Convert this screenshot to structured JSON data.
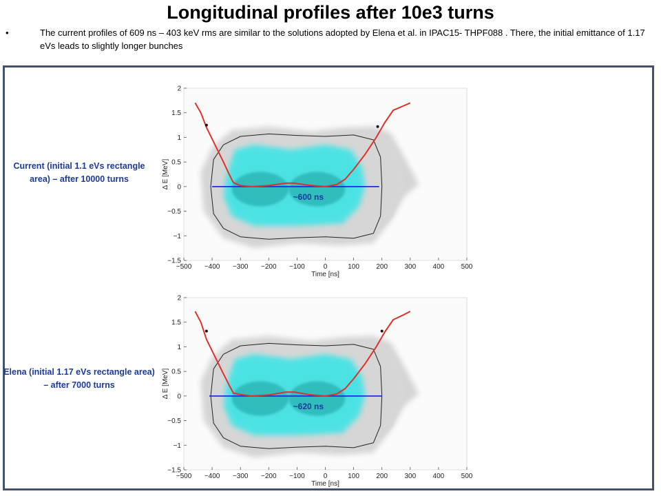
{
  "slide": {
    "title": "Longitudinal profiles after 10e3 turns",
    "bullet_symbol": "•",
    "bullet_text": "The current profiles of 609 ns – 403 keV rms are similar to the solutions adopted by Elena et al. in IPAC15- THPF088 . There, the initial emittance of 1.17 eVs leads to slightly longer bunches"
  },
  "colors": {
    "frame": "#42526e",
    "label_text": "#1b3a9e",
    "separatrix": "#222222",
    "profile": "#e0302a",
    "span_line": "#1a2fd6",
    "beam": "#29e6e8",
    "beam_core": "#1a9f9f",
    "background_cloud": "#c8c8c8"
  },
  "chart_data": [
    {
      "type": "scatter",
      "side_label": "Current (initial 1.1 eVs rectangle area) – after 10000 turns",
      "xlabel": "Time [ns]",
      "ylabel": "Δ E [MeV]",
      "xlim": [
        -500,
        500
      ],
      "ylim": [
        -1.5,
        2
      ],
      "xticks": [
        "−500",
        "−400",
        "−300",
        "−200",
        "−100",
        "0",
        "100",
        "200",
        "300",
        "400",
        "500"
      ],
      "yticks": [
        "−1.5",
        "−1",
        "−0.5",
        "0",
        "0.5",
        "1",
        "1.5",
        "2"
      ],
      "annotation": "~600 ns",
      "span": [
        -400,
        190
      ],
      "profile_points": [
        [
          -460,
          1.7
        ],
        [
          -440,
          1.5
        ],
        [
          -420,
          1.2
        ],
        [
          -390,
          0.85
        ],
        [
          -360,
          0.5
        ],
        [
          -340,
          0.25
        ],
        [
          -325,
          0.08
        ],
        [
          -300,
          0.02
        ],
        [
          -260,
          0.0
        ],
        [
          -200,
          0.02
        ],
        [
          -140,
          0.07
        ],
        [
          -110,
          0.07
        ],
        [
          -60,
          0.03
        ],
        [
          0,
          0.0
        ],
        [
          40,
          0.04
        ],
        [
          70,
          0.15
        ],
        [
          100,
          0.35
        ],
        [
          140,
          0.65
        ],
        [
          180,
          1.0
        ],
        [
          210,
          1.3
        ],
        [
          240,
          1.55
        ],
        [
          280,
          1.65
        ],
        [
          300,
          1.7
        ]
      ],
      "markers": [
        [
          -420,
          1.25
        ],
        [
          185,
          1.22
        ]
      ]
    },
    {
      "type": "scatter",
      "side_label": "Elena (initial 1.17 eVs rectangle area) – after 7000 turns",
      "xlabel": "Time [ns]",
      "ylabel": "Δ E [MeV]",
      "xlim": [
        -500,
        500
      ],
      "ylim": [
        -1.5,
        2
      ],
      "xticks": [
        "−500",
        "−400",
        "−300",
        "−200",
        "−100",
        "0",
        "100",
        "200",
        "300",
        "400",
        "500"
      ],
      "yticks": [
        "−1.5",
        "−1",
        "−0.5",
        "0",
        "0.5",
        "1",
        "1.5",
        "2"
      ],
      "annotation": "~620 ns",
      "span": [
        -410,
        200
      ],
      "profile_points": [
        [
          -460,
          1.72
        ],
        [
          -440,
          1.5
        ],
        [
          -420,
          1.15
        ],
        [
          -390,
          0.8
        ],
        [
          -360,
          0.45
        ],
        [
          -340,
          0.22
        ],
        [
          -325,
          0.06
        ],
        [
          -300,
          0.03
        ],
        [
          -260,
          0.0
        ],
        [
          -200,
          0.02
        ],
        [
          -140,
          0.08
        ],
        [
          -110,
          0.08
        ],
        [
          -60,
          0.03
        ],
        [
          0,
          0.0
        ],
        [
          40,
          0.04
        ],
        [
          70,
          0.15
        ],
        [
          100,
          0.35
        ],
        [
          140,
          0.65
        ],
        [
          180,
          1.0
        ],
        [
          210,
          1.3
        ],
        [
          240,
          1.55
        ],
        [
          280,
          1.66
        ],
        [
          300,
          1.72
        ]
      ],
      "markers": [
        [
          -420,
          1.32
        ],
        [
          200,
          1.32
        ]
      ]
    }
  ]
}
